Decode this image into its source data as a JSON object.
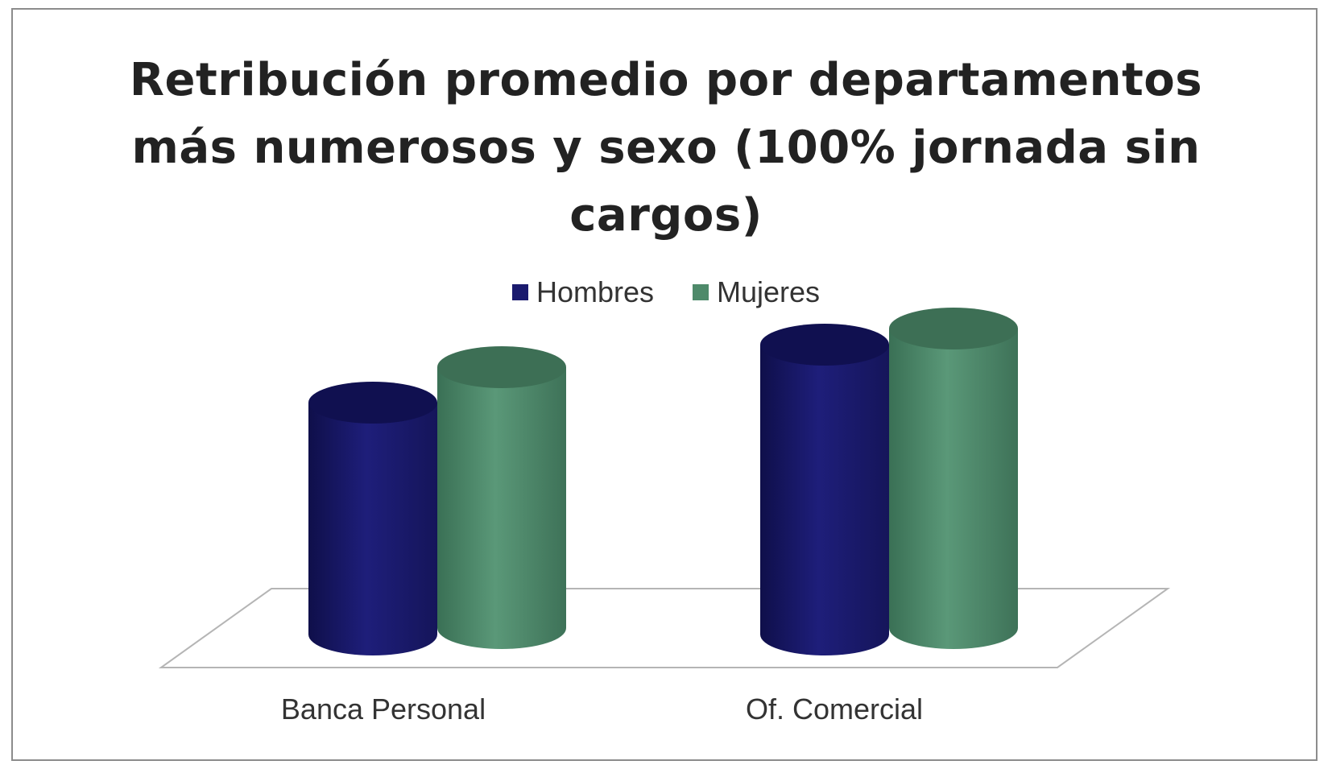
{
  "chart_data": {
    "type": "bar",
    "style": "3d-cylinder",
    "title_lines": [
      "Retribución promedio por departamentos",
      "más numerosos y sexo (100% jornada sin",
      "cargos)"
    ],
    "categories": [
      "Banca Personal",
      "Of. Comercial"
    ],
    "series": [
      {
        "name": "Hombres",
        "color": "#1a1a6e",
        "values": [
          24,
          30
        ]
      },
      {
        "name": "Mujeres",
        "color": "#4e8a6a",
        "values": [
          27,
          31
        ]
      }
    ],
    "ylim": [
      0,
      32
    ],
    "legend_position": "top-center",
    "grid": false
  }
}
